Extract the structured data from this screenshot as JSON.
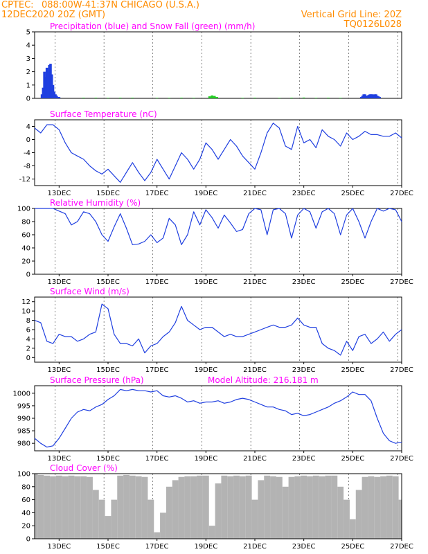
{
  "header": {
    "source": "CPTEC:",
    "location": "088:00W-41:37N   CHICAGO (U.S.A.)",
    "date": "12DEC2020 20Z (GMT)",
    "grid_note": "Vertical Grid Line: 20Z",
    "model_code": "TQ0126L028"
  },
  "colors": {
    "header": "#ff8c00",
    "panel_title": "#ff00ff",
    "line": "#1f3fe0",
    "snow": "#22cc22",
    "cloud": "#b3b3b3",
    "arrow": "#000000",
    "grid": "#000000"
  },
  "chart_data": [
    {
      "id": "precip",
      "type": "bar",
      "title": "Precipitation (blue) and Snow Fall (green) (mm/h)",
      "x_tick_labels": [],
      "ylim": [
        0,
        5
      ],
      "yticks": [
        0,
        1,
        2,
        3,
        4,
        5
      ],
      "series": [
        {
          "name": "Precipitation (blue)",
          "color": "#1f3fe0",
          "x": [
            12.3,
            12.35,
            12.4,
            12.45,
            12.5,
            12.55,
            12.6,
            12.65,
            12.7,
            12.75,
            12.8,
            12.85,
            12.9,
            12.95,
            13.0,
            25.35,
            25.4,
            25.45,
            25.5,
            25.55,
            25.6,
            25.65,
            25.7,
            25.75,
            25.8,
            25.85,
            25.9,
            25.95,
            26.0,
            26.05,
            26.1
          ],
          "values": [
            0.3,
            0.8,
            2.0,
            1.6,
            2.3,
            2.0,
            2.5,
            2.6,
            1.8,
            1.0,
            0.5,
            0.3,
            0.2,
            0.1,
            0.1,
            0.1,
            0.2,
            0.3,
            0.3,
            0.2,
            0.2,
            0.25,
            0.3,
            0.3,
            0.3,
            0.25,
            0.3,
            0.3,
            0.2,
            0.15,
            0.1
          ]
        },
        {
          "name": "Snow Fall (green)",
          "color": "#22cc22",
          "x": [
            14.0,
            14.5,
            15.0,
            15.5,
            16.0,
            17.0,
            17.5,
            18.0,
            18.5,
            19.15,
            19.25,
            19.35,
            19.45,
            20.5,
            21.0,
            22.0,
            22.5,
            23.0,
            23.5,
            24.0,
            24.5
          ],
          "values": [
            0.05,
            0.05,
            0.04,
            0.05,
            0.05,
            0.04,
            0.04,
            0.05,
            0.04,
            0.15,
            0.22,
            0.18,
            0.1,
            0.04,
            0.05,
            0.04,
            0.05,
            0.06,
            0.04,
            0.05,
            0.04
          ]
        }
      ]
    },
    {
      "id": "temperature",
      "type": "line",
      "title": "Surface Temperature (nC)",
      "x_tick_labels": [
        "13DEC",
        "15DEC",
        "17DEC",
        "19DEC",
        "21DEC",
        "23DEC",
        "25DEC",
        "27DEC"
      ],
      "ylim": [
        -14,
        6
      ],
      "yticks": [
        -12,
        -8,
        -4,
        0,
        4
      ],
      "x": [
        12.0,
        12.25,
        12.5,
        12.75,
        13.0,
        13.25,
        13.5,
        13.75,
        14.0,
        14.25,
        14.5,
        14.75,
        15.0,
        15.25,
        15.5,
        15.75,
        16.0,
        16.25,
        16.5,
        16.75,
        17.0,
        17.25,
        17.5,
        17.75,
        18.0,
        18.25,
        18.5,
        18.75,
        19.0,
        19.25,
        19.5,
        19.75,
        20.0,
        20.25,
        20.5,
        20.75,
        21.0,
        21.25,
        21.5,
        21.75,
        22.0,
        22.25,
        22.5,
        22.75,
        23.0,
        23.25,
        23.5,
        23.75,
        24.0,
        24.25,
        24.5,
        24.75,
        25.0,
        25.25,
        25.5,
        25.75,
        26.0,
        26.25,
        26.5,
        26.75,
        27.0
      ],
      "values": [
        3.5,
        2.0,
        4.5,
        4.5,
        3.0,
        -1.0,
        -4.0,
        -5.0,
        -6.0,
        -8.0,
        -9.5,
        -10.5,
        -9.0,
        -11.0,
        -13.0,
        -10.0,
        -7.0,
        -10.0,
        -12.5,
        -10.0,
        -6.0,
        -9.0,
        -12.0,
        -8.0,
        -4.0,
        -6.0,
        -9.0,
        -6.0,
        -1.0,
        -3.0,
        -6.0,
        -3.0,
        0.0,
        -2.0,
        -5.0,
        -7.0,
        -9.0,
        -4.0,
        2.0,
        5.0,
        3.5,
        -2.0,
        -3.0,
        4.0,
        -1.0,
        0.0,
        -2.5,
        3.0,
        1.0,
        0.0,
        -2.0,
        2.0,
        0.0,
        1.0,
        2.5,
        1.5,
        1.5,
        1.0,
        1.0,
        2.0,
        0.5
      ]
    },
    {
      "id": "humidity",
      "type": "line",
      "title": "Relative Humidity (%)",
      "x_tick_labels": [
        "13DEC",
        "15DEC",
        "17DEC",
        "19DEC",
        "21DEC",
        "23DEC",
        "25DEC",
        "27DEC"
      ],
      "ylim": [
        0,
        100
      ],
      "yticks": [
        0,
        20,
        40,
        60,
        80,
        100
      ],
      "x": [
        12.0,
        12.25,
        12.5,
        12.75,
        13.0,
        13.25,
        13.5,
        13.75,
        14.0,
        14.25,
        14.5,
        14.75,
        15.0,
        15.25,
        15.5,
        15.75,
        16.0,
        16.25,
        16.5,
        16.75,
        17.0,
        17.25,
        17.5,
        17.75,
        18.0,
        18.25,
        18.5,
        18.75,
        19.0,
        19.25,
        19.5,
        19.75,
        20.0,
        20.25,
        20.5,
        20.75,
        21.0,
        21.25,
        21.5,
        21.75,
        22.0,
        22.25,
        22.5,
        22.75,
        23.0,
        23.25,
        23.5,
        23.75,
        24.0,
        24.25,
        24.5,
        24.75,
        25.0,
        25.25,
        25.5,
        25.75,
        26.0,
        26.25,
        26.5,
        26.75,
        27.0
      ],
      "values": [
        100,
        100,
        100,
        100,
        96,
        92,
        75,
        80,
        95,
        92,
        80,
        60,
        50,
        72,
        92,
        70,
        45,
        46,
        50,
        60,
        48,
        55,
        85,
        75,
        45,
        60,
        95,
        75,
        98,
        86,
        70,
        90,
        78,
        65,
        68,
        92,
        100,
        98,
        60,
        98,
        100,
        92,
        55,
        90,
        100,
        95,
        70,
        95,
        100,
        92,
        60,
        90,
        100,
        80,
        55,
        80,
        100,
        96,
        100,
        98,
        80
      ]
    },
    {
      "id": "wind",
      "type": "line",
      "title": "Surface Wind (m/s)",
      "x_tick_labels": [
        "13DEC",
        "15DEC",
        "17DEC",
        "19DEC",
        "21DEC",
        "23DEC",
        "25DEC",
        "27DEC"
      ],
      "ylim": [
        -1,
        13
      ],
      "yticks": [
        0,
        2,
        4,
        6,
        8,
        10,
        12
      ],
      "x": [
        12.0,
        12.25,
        12.5,
        12.75,
        13.0,
        13.25,
        13.5,
        13.75,
        14.0,
        14.25,
        14.5,
        14.75,
        15.0,
        15.25,
        15.5,
        15.75,
        16.0,
        16.25,
        16.5,
        16.75,
        17.0,
        17.25,
        17.5,
        17.75,
        18.0,
        18.25,
        18.5,
        18.75,
        19.0,
        19.25,
        19.5,
        19.75,
        20.0,
        20.25,
        20.5,
        20.75,
        21.0,
        21.25,
        21.5,
        21.75,
        22.0,
        22.25,
        22.5,
        22.75,
        23.0,
        23.25,
        23.5,
        23.75,
        24.0,
        24.25,
        24.5,
        24.75,
        25.0,
        25.25,
        25.5,
        25.75,
        26.0,
        26.25,
        26.5,
        26.75,
        27.0
      ],
      "values": [
        8.0,
        7.5,
        3.5,
        3.0,
        5.0,
        4.5,
        4.5,
        3.5,
        4.0,
        5.0,
        5.5,
        11.5,
        10.5,
        5.0,
        3.0,
        3.0,
        2.5,
        4.0,
        1.0,
        2.5,
        3.0,
        4.5,
        5.5,
        7.5,
        11.0,
        8.0,
        7.0,
        6.0,
        6.5,
        6.5,
        5.5,
        4.5,
        5.0,
        4.5,
        4.5,
        5.0,
        5.5,
        6.0,
        6.5,
        7.0,
        6.5,
        6.5,
        7.0,
        8.5,
        7.0,
        6.5,
        6.5,
        3.0,
        2.0,
        1.5,
        0.5,
        3.5,
        1.5,
        4.5,
        5.0,
        3.0,
        4.0,
        5.5,
        3.5,
        5.0,
        6.0
      ]
    },
    {
      "id": "pressure",
      "type": "line",
      "title": "Surface Pressure (hPa)",
      "annotation": "Model Altitude: 216.181  m",
      "x_tick_labels": [
        "13DEC",
        "15DEC",
        "17DEC",
        "19DEC",
        "21DEC",
        "23DEC",
        "25DEC",
        "27DEC"
      ],
      "ylim": [
        977,
        1003
      ],
      "yticks": [
        980,
        985,
        990,
        995,
        1000
      ],
      "x": [
        12.0,
        12.25,
        12.5,
        12.75,
        13.0,
        13.25,
        13.5,
        13.75,
        14.0,
        14.25,
        14.5,
        14.75,
        15.0,
        15.25,
        15.5,
        15.75,
        16.0,
        16.25,
        16.5,
        16.75,
        17.0,
        17.25,
        17.5,
        17.75,
        18.0,
        18.25,
        18.5,
        18.75,
        19.0,
        19.25,
        19.5,
        19.75,
        20.0,
        20.25,
        20.5,
        20.75,
        21.0,
        21.25,
        21.5,
        21.75,
        22.0,
        22.25,
        22.5,
        22.75,
        23.0,
        23.25,
        23.5,
        23.75,
        24.0,
        24.25,
        24.5,
        24.75,
        25.0,
        25.25,
        25.5,
        25.75,
        26.0,
        26.25,
        26.5,
        26.75,
        27.0
      ],
      "values": [
        982.0,
        980.0,
        978.5,
        979.0,
        982.0,
        986.0,
        990.0,
        992.5,
        993.5,
        993.0,
        994.5,
        995.5,
        997.5,
        999.0,
        1001.5,
        1001.0,
        1001.5,
        1001.0,
        1001.0,
        1000.5,
        1001.0,
        999.0,
        998.5,
        999.0,
        998.0,
        996.5,
        997.0,
        996.0,
        996.5,
        996.5,
        997.0,
        996.0,
        996.5,
        997.5,
        998.0,
        997.5,
        996.5,
        995.5,
        994.5,
        994.5,
        993.5,
        993.0,
        991.5,
        992.0,
        991.0,
        991.5,
        992.5,
        993.5,
        994.5,
        996.0,
        997.0,
        998.5,
        1000.5,
        999.5,
        999.5,
        997.0,
        990.0,
        984.0,
        981.0,
        980.0,
        980.5
      ]
    },
    {
      "id": "cloud",
      "type": "area",
      "title": "Cloud Cover (%)",
      "x_tick_labels": [
        "13DEC",
        "15DEC",
        "17DEC",
        "19DEC",
        "21DEC",
        "23DEC",
        "25DEC",
        "27DEC"
      ],
      "ylim": [
        0,
        100
      ],
      "yticks": [
        0,
        20,
        40,
        60,
        80,
        100
      ],
      "x": [
        12.0,
        12.25,
        12.5,
        12.75,
        13.0,
        13.25,
        13.5,
        13.75,
        14.0,
        14.25,
        14.5,
        14.75,
        15.0,
        15.25,
        15.5,
        15.75,
        16.0,
        16.25,
        16.5,
        16.75,
        17.0,
        17.25,
        17.5,
        17.75,
        18.0,
        18.25,
        18.5,
        18.75,
        19.0,
        19.25,
        19.5,
        19.75,
        20.0,
        20.25,
        20.5,
        20.75,
        21.0,
        21.25,
        21.5,
        21.75,
        22.0,
        22.25,
        22.5,
        22.75,
        23.0,
        23.25,
        23.5,
        23.75,
        24.0,
        24.25,
        24.5,
        24.75,
        25.0,
        25.25,
        25.5,
        25.75,
        26.0,
        26.25,
        26.5,
        26.75,
        27.0
      ],
      "values": [
        100,
        98,
        97,
        96,
        97,
        96,
        97,
        96,
        96,
        95,
        75,
        60,
        35,
        60,
        97,
        98,
        97,
        96,
        95,
        60,
        10,
        40,
        80,
        90,
        95,
        96,
        96,
        97,
        97,
        20,
        85,
        97,
        96,
        97,
        96,
        97,
        60,
        90,
        97,
        96,
        95,
        80,
        95,
        96,
        97,
        96,
        97,
        96,
        97,
        97,
        80,
        60,
        30,
        75,
        95,
        96,
        95,
        96,
        97,
        96,
        60
      ]
    }
  ]
}
